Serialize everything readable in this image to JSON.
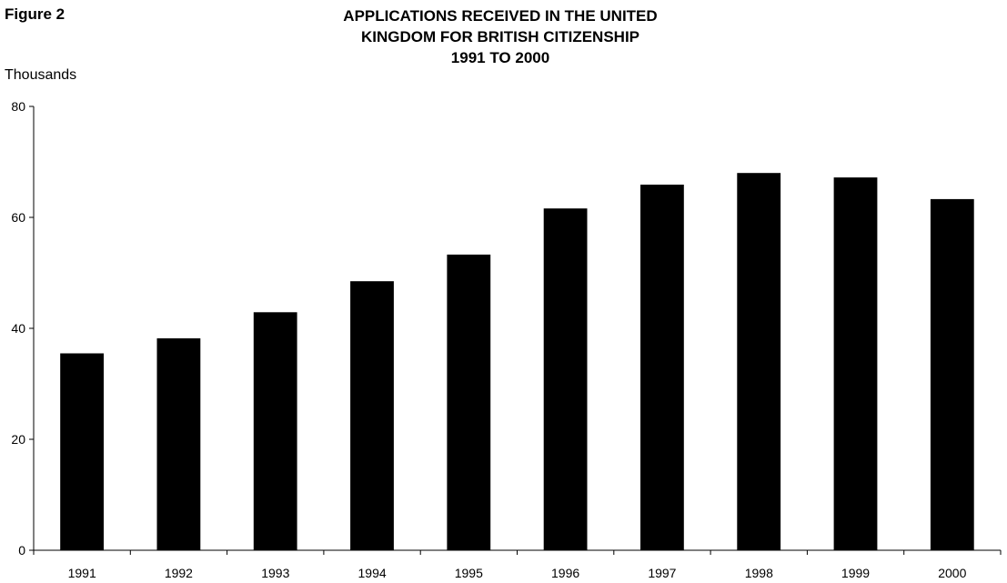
{
  "figure_label": "Figure 2",
  "title_lines": [
    "APPLICATIONS RECEIVED IN THE UNITED",
    "KINGDOM FOR BRITISH CITIZENSHIP",
    "1991 TO 2000"
  ],
  "chart_data": {
    "type": "bar",
    "title": "APPLICATIONS RECEIVED IN THE UNITED KINGDOM FOR BRITISH CITIZENSHIP 1991 TO 2000",
    "ylabel": "Thousands",
    "xlabel": "",
    "categories": [
      "1991",
      "1992",
      "1993",
      "1994",
      "1995",
      "1996",
      "1997",
      "1998",
      "1999",
      "2000"
    ],
    "values": [
      35.5,
      38.2,
      42.9,
      48.5,
      53.3,
      61.6,
      65.9,
      68.0,
      67.2,
      63.3
    ],
    "ylim": [
      0,
      80
    ],
    "yticks": [
      "0",
      "20",
      "40",
      "60",
      "80"
    ],
    "grid": false,
    "legend": "none",
    "bar_color": "#000000"
  }
}
